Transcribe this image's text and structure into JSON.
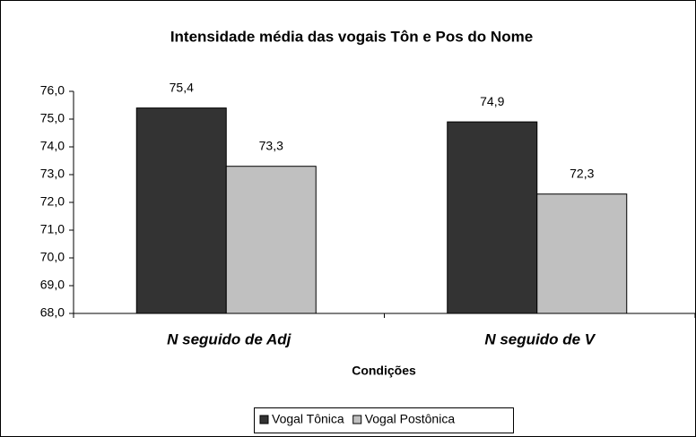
{
  "chart_data": {
    "type": "bar",
    "title": "Intensidade média das vogais Tôn e Pos do Nome",
    "x_label": "Condições",
    "categories": [
      "N seguido de Adj",
      "N seguido de V"
    ],
    "series": [
      {
        "name": "Vogal Tônica",
        "color": "#333333",
        "values": [
          75.4,
          74.9
        ],
        "value_labels": [
          "75,4",
          "74,9"
        ]
      },
      {
        "name": "Vogal Postônica",
        "color": "#c0c0c0",
        "values": [
          73.3,
          72.3
        ],
        "value_labels": [
          "73,3",
          "72,3"
        ]
      }
    ],
    "ylim": [
      68,
      76
    ],
    "yticks": [
      {
        "value": 68,
        "label": "68,0"
      },
      {
        "value": 69,
        "label": "69,0"
      },
      {
        "value": 70,
        "label": "70,0"
      },
      {
        "value": 71,
        "label": "71,0"
      },
      {
        "value": 72,
        "label": "72,0"
      },
      {
        "value": 73,
        "label": "73,0"
      },
      {
        "value": 74,
        "label": "74,0"
      },
      {
        "value": 75,
        "label": "75,0"
      },
      {
        "value": 76,
        "label": "76,0"
      }
    ],
    "grid": false,
    "legend": "bottom"
  }
}
